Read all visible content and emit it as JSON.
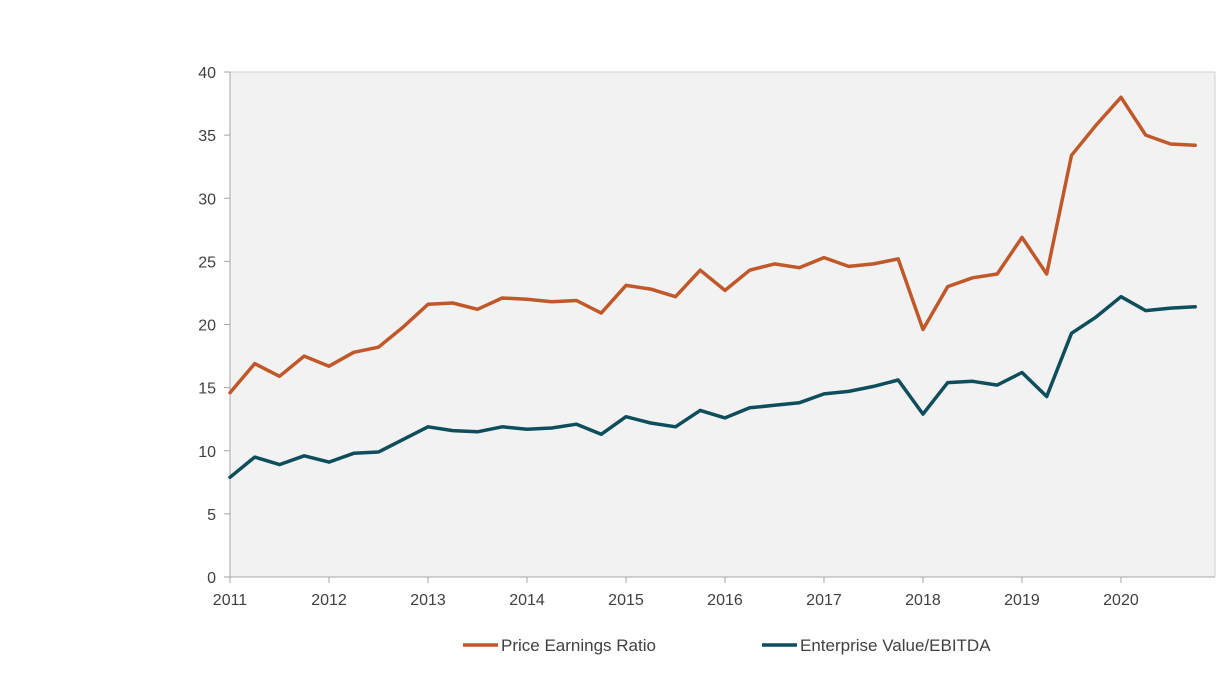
{
  "chart_data": {
    "type": "line",
    "x": [
      "2011 Q1",
      "2011 Q2",
      "2011 Q3",
      "2011 Q4",
      "2012 Q1",
      "2012 Q2",
      "2012 Q3",
      "2012 Q4",
      "2013 Q1",
      "2013 Q2",
      "2013 Q3",
      "2013 Q4",
      "2014 Q1",
      "2014 Q2",
      "2014 Q3",
      "2014 Q4",
      "2015 Q1",
      "2015 Q2",
      "2015 Q3",
      "2015 Q4",
      "2016 Q1",
      "2016 Q2",
      "2016 Q3",
      "2016 Q4",
      "2017 Q1",
      "2017 Q2",
      "2017 Q3",
      "2017 Q4",
      "2018 Q1",
      "2018 Q2",
      "2018 Q3",
      "2018 Q4",
      "2019 Q1",
      "2019 Q2",
      "2019 Q3",
      "2019 Q4",
      "2020 Q1",
      "2020 Q2",
      "2020 Q3",
      "2020 Q4"
    ],
    "x_tick_labels": [
      "2011",
      "2012",
      "2013",
      "2014",
      "2015",
      "2016",
      "2017",
      "2018",
      "2019",
      "2020"
    ],
    "series": [
      {
        "name": "Price Earnings Ratio",
        "color": "#c0582a",
        "values": [
          14.6,
          16.9,
          15.9,
          17.5,
          16.7,
          17.8,
          18.2,
          19.8,
          21.6,
          21.7,
          21.2,
          22.1,
          22.0,
          21.8,
          21.9,
          20.9,
          23.1,
          22.8,
          22.2,
          24.3,
          22.7,
          24.3,
          24.8,
          24.5,
          25.3,
          24.6,
          24.8,
          25.2,
          19.6,
          23.0,
          23.7,
          24.0,
          26.9,
          24.0,
          33.4,
          35.8,
          38.0,
          35.0,
          34.3,
          34.2
        ]
      },
      {
        "name": "Enterprise Value/EBITDA",
        "color": "#0e4e5c",
        "values": [
          7.9,
          9.5,
          8.9,
          9.6,
          9.1,
          9.8,
          9.9,
          10.9,
          11.9,
          11.6,
          11.5,
          11.9,
          11.7,
          11.8,
          12.1,
          11.3,
          12.7,
          12.2,
          11.9,
          13.2,
          12.6,
          13.4,
          13.6,
          13.8,
          14.5,
          14.7,
          15.1,
          15.6,
          12.9,
          15.4,
          15.5,
          15.2,
          16.2,
          14.3,
          19.3,
          20.6,
          22.2,
          21.1,
          21.3,
          21.4
        ]
      }
    ],
    "y_ticks": [
      "0",
      "5",
      "10",
      "15",
      "20",
      "25",
      "30",
      "35",
      "40"
    ],
    "ylim": [
      0,
      40
    ],
    "grid": false,
    "legend": "bottom",
    "plot_background": "#f2f2f2"
  }
}
